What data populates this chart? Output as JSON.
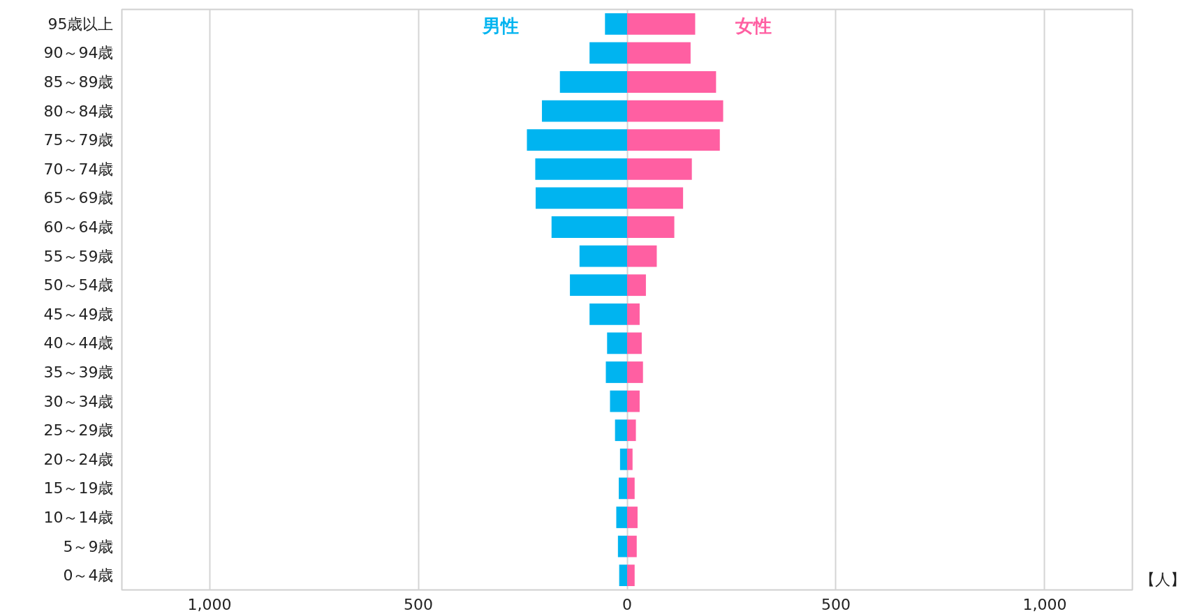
{
  "chart_data": {
    "type": "bar",
    "orientation": "horizontal",
    "stacked": true,
    "categories": [
      "95歳以上",
      "90～94歳",
      "85～89歳",
      "80～84歳",
      "75～79歳",
      "70～74歳",
      "65～69歳",
      "60～64歳",
      "55～59歳",
      "50～54歳",
      "45～49歳",
      "40～44歳",
      "35～39歳",
      "30～34歳",
      "25～29歳",
      "20～24歳",
      "15～19歳",
      "10～14歳",
      "5～9歳",
      "0～4歳"
    ],
    "series": [
      {
        "name": "男性",
        "color": "#00b4f0",
        "values": [
          -53,
          -90,
          -161,
          -204,
          -240,
          -220,
          -219,
          -181,
          -114,
          -137,
          -90,
          -48,
          -51,
          -41,
          -29,
          -17,
          -20,
          -26,
          -22,
          -19
        ]
      },
      {
        "name": "女性",
        "color": "#ff5fa2",
        "values": [
          163,
          152,
          213,
          230,
          222,
          155,
          134,
          113,
          71,
          45,
          30,
          35,
          38,
          30,
          21,
          13,
          18,
          25,
          23,
          18
        ]
      }
    ],
    "xlim": [
      -1210,
      1210
    ],
    "xticks": [
      {
        "value": -1000,
        "label": "1,000"
      },
      {
        "value": -500,
        "label": "500"
      },
      0,
      500,
      {
        "value": 1000,
        "label": "1,000"
      }
    ],
    "xlabel": "【人】",
    "grid": "x",
    "legend": false
  }
}
